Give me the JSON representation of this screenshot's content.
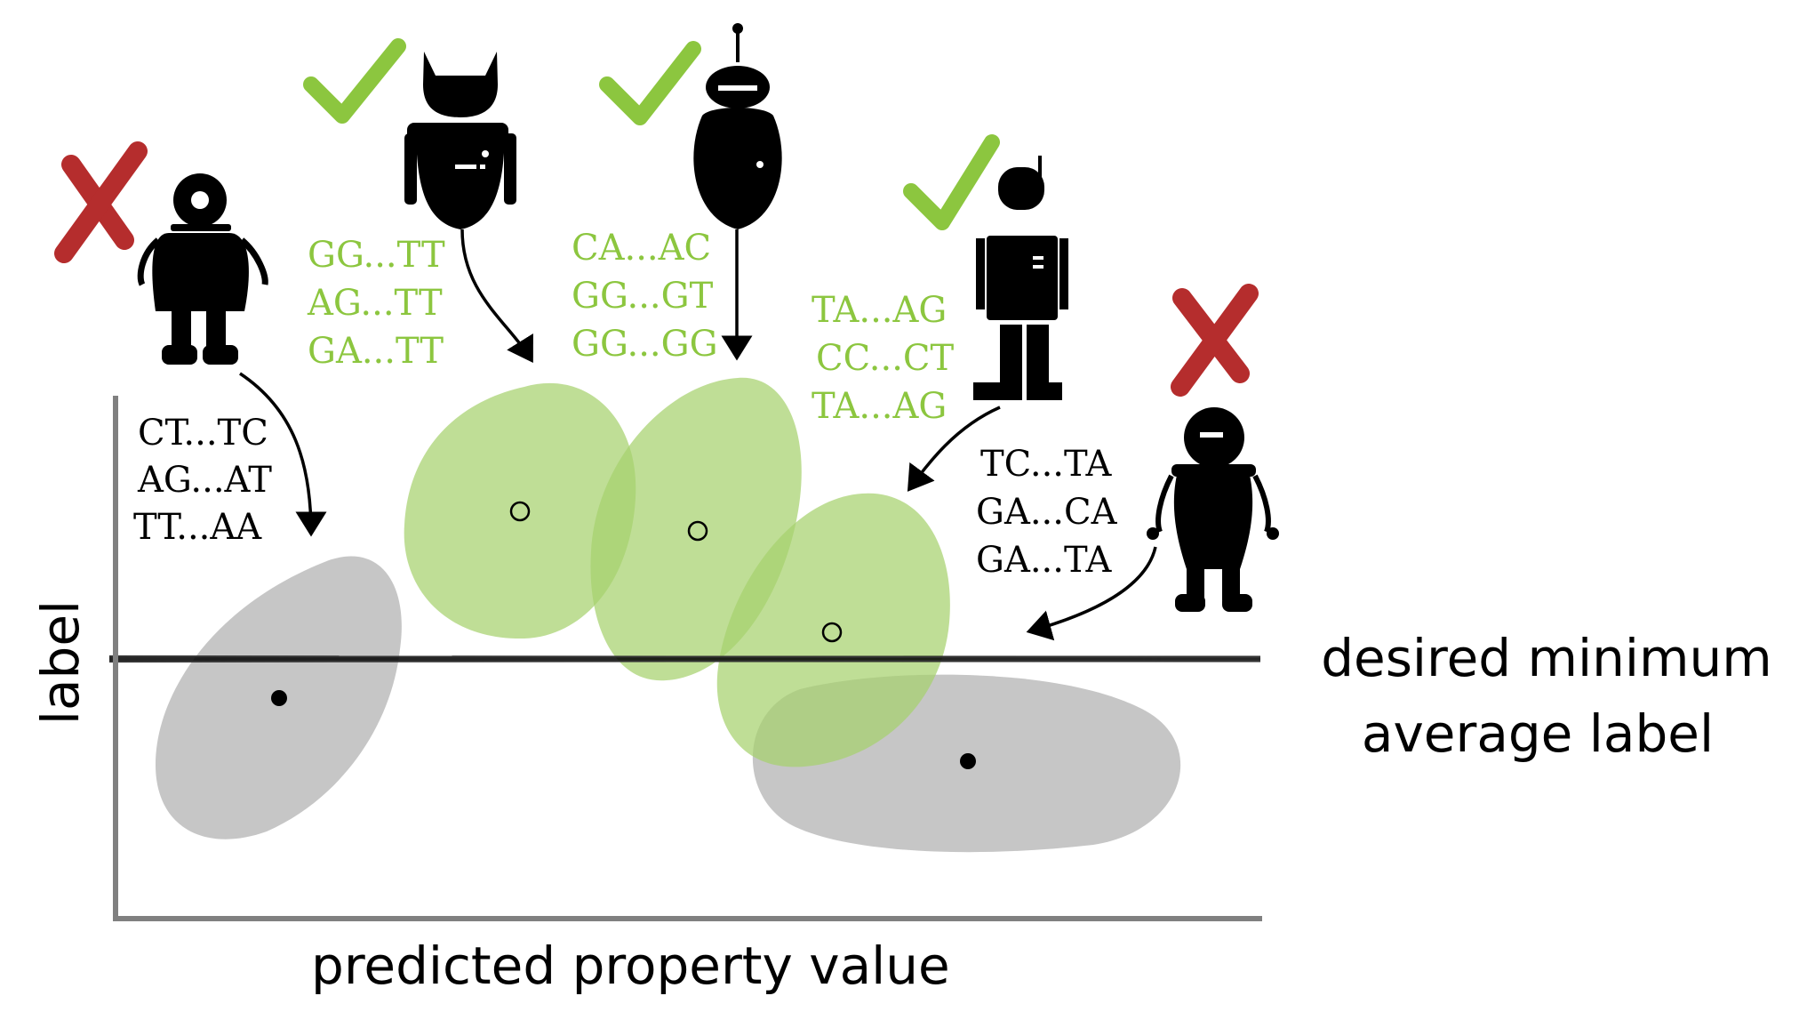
{
  "axes": {
    "xlabel": "predicted property value",
    "ylabel": "label"
  },
  "threshold": {
    "line1": "desired minimum",
    "line2": "average label"
  },
  "colors": {
    "green": "#8cc63f",
    "green_fill": "#a6d16d",
    "gray_fill": "#b3b3b3",
    "red": "#b22222",
    "black": "#000000",
    "axis": "#808080"
  },
  "robots": [
    {
      "status": "rejected",
      "mark": "cross-icon",
      "sequences": [
        "CT...TC",
        "AG...AT",
        "TT...AA"
      ],
      "sequence_color": "black",
      "cluster": "gray",
      "mean_marker": "filled"
    },
    {
      "status": "accepted",
      "mark": "check-icon",
      "sequences": [
        "GG...TT",
        "AG...TT",
        "GA...TT"
      ],
      "sequence_color": "green",
      "cluster": "green",
      "mean_marker": "open"
    },
    {
      "status": "accepted",
      "mark": "check-icon",
      "sequences": [
        "CA...AC",
        "GG...GT",
        "GG...GG"
      ],
      "sequence_color": "green",
      "cluster": "green",
      "mean_marker": "open"
    },
    {
      "status": "accepted",
      "mark": "check-icon",
      "sequences": [
        "TA...AG",
        "CC...CT",
        "TA...AG"
      ],
      "sequence_color": "green",
      "cluster": "green",
      "mean_marker": "open"
    },
    {
      "status": "rejected",
      "mark": "cross-icon",
      "sequences": [
        "TC...TA",
        "GA...CA",
        "GA...TA"
      ],
      "sequence_color": "black",
      "cluster": "gray",
      "mean_marker": "filled"
    }
  ]
}
